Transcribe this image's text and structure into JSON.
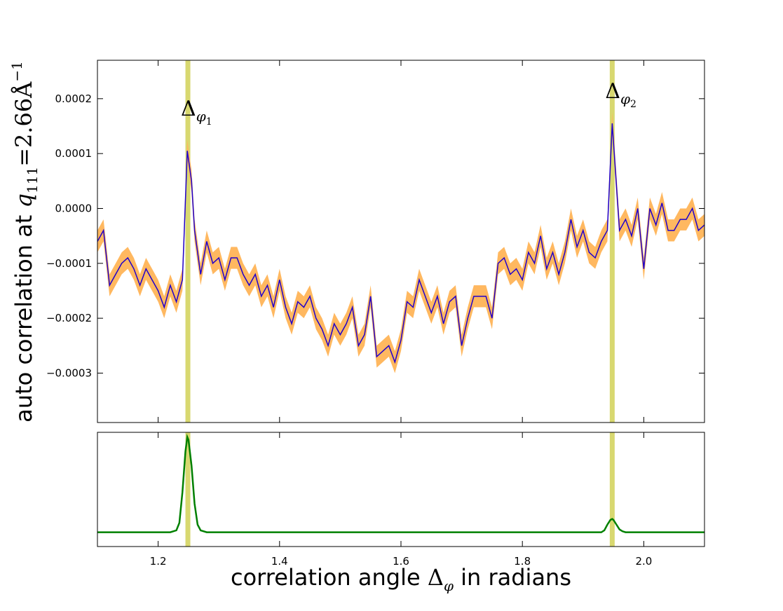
{
  "chart_data": [
    {
      "type": "line",
      "x": [
        1.1,
        1.11,
        1.12,
        1.13,
        1.14,
        1.15,
        1.16,
        1.17,
        1.18,
        1.19,
        1.2,
        1.21,
        1.22,
        1.23,
        1.24,
        1.248,
        1.255,
        1.26,
        1.27,
        1.28,
        1.29,
        1.3,
        1.31,
        1.32,
        1.33,
        1.34,
        1.35,
        1.36,
        1.37,
        1.38,
        1.39,
        1.4,
        1.41,
        1.42,
        1.43,
        1.44,
        1.45,
        1.46,
        1.47,
        1.48,
        1.49,
        1.5,
        1.51,
        1.52,
        1.53,
        1.54,
        1.55,
        1.56,
        1.57,
        1.58,
        1.59,
        1.6,
        1.61,
        1.62,
        1.63,
        1.64,
        1.65,
        1.66,
        1.67,
        1.68,
        1.69,
        1.7,
        1.71,
        1.72,
        1.73,
        1.74,
        1.75,
        1.76,
        1.77,
        1.78,
        1.79,
        1.8,
        1.81,
        1.82,
        1.83,
        1.84,
        1.85,
        1.86,
        1.87,
        1.88,
        1.89,
        1.9,
        1.91,
        1.92,
        1.93,
        1.94,
        1.948,
        1.96,
        1.97,
        1.98,
        1.99,
        2.0,
        2.01,
        2.02,
        2.03,
        2.04,
        2.05,
        2.06,
        2.07,
        2.08,
        2.09,
        2.1
      ],
      "series": [
        {
          "color": "#1f00cc",
          "band_color": "#ffb860",
          "error": 2e-05,
          "values": [
            -6e-05,
            -4e-05,
            -0.00014,
            -0.00012,
            -0.0001,
            -9e-05,
            -0.00011,
            -0.00014,
            -0.00011,
            -0.00013,
            -0.00015,
            -0.00018,
            -0.00014,
            -0.00017,
            -0.00013,
            0.000105,
            5e-05,
            -4e-05,
            -0.00012,
            -6e-05,
            -0.0001,
            -9e-05,
            -0.00013,
            -9e-05,
            -9e-05,
            -0.00012,
            -0.00014,
            -0.00012,
            -0.00016,
            -0.00014,
            -0.00018,
            -0.00013,
            -0.00018,
            -0.00021,
            -0.00017,
            -0.00018,
            -0.00016,
            -0.0002,
            -0.00022,
            -0.00025,
            -0.00021,
            -0.00023,
            -0.00021,
            -0.00018,
            -0.00025,
            -0.00023,
            -0.00016,
            -0.00027,
            -0.00026,
            -0.00025,
            -0.00028,
            -0.00024,
            -0.00017,
            -0.00018,
            -0.00013,
            -0.00016,
            -0.00019,
            -0.00016,
            -0.00021,
            -0.00017,
            -0.00016,
            -0.00025,
            -0.0002,
            -0.00016,
            -0.00016,
            -0.00016,
            -0.0002,
            -0.0001,
            -9e-05,
            -0.00012,
            -0.00011,
            -0.00013,
            -8e-05,
            -0.0001,
            -5e-05,
            -0.00011,
            -8e-05,
            -0.00012,
            -8e-05,
            -2e-05,
            -7e-05,
            -4e-05,
            -8e-05,
            -9e-05,
            -6e-05,
            -4e-05,
            0.000155,
            -4e-05,
            -2e-05,
            -5e-05,
            0,
            -0.00011,
            0,
            -3e-05,
            1e-05,
            -4e-05,
            -4e-05,
            -2e-05,
            -2e-05,
            0,
            -4e-05,
            -3e-05
          ]
        }
      ],
      "xlim": [
        1.1,
        2.1
      ],
      "ylim": [
        -0.00039,
        0.00027
      ],
      "yticks": [
        {
          "value": -0.0003,
          "label": "−0.0003"
        },
        {
          "value": -0.0002,
          "label": "−0.0002"
        },
        {
          "value": -0.0001,
          "label": "−0.0001"
        },
        {
          "value": 0,
          "label": "0.0000"
        },
        0.0001,
        0.0002
      ],
      "ylabel": [
        "auto correlation at ",
        "q",
        "111",
        "=2.66Å",
        "−1"
      ],
      "highlights": [
        1.249,
        1.948
      ],
      "highlight_color": "#d8d870",
      "annotations": [
        {
          "symbol": "Δ",
          "sub": "φ",
          "index": "1"
        },
        {
          "symbol": "Δ",
          "sub": "φ",
          "index": "2"
        }
      ]
    },
    {
      "type": "line",
      "x": [
        1.1,
        1.22,
        1.23,
        1.235,
        1.24,
        1.245,
        1.248,
        1.25,
        1.255,
        1.26,
        1.265,
        1.27,
        1.28,
        1.93,
        1.935,
        1.94,
        1.945,
        1.948,
        1.95,
        1.955,
        1.96,
        1.965,
        1.97,
        2.1
      ],
      "series": [
        {
          "color": "#008000",
          "values": [
            0,
            0,
            0.02,
            0.1,
            0.42,
            0.85,
            1.0,
            0.97,
            0.7,
            0.3,
            0.08,
            0.02,
            0,
            0,
            0.02,
            0.08,
            0.13,
            0.14,
            0.13,
            0.08,
            0.03,
            0.01,
            0,
            0
          ]
        }
      ],
      "xlim": [
        1.1,
        2.1
      ],
      "ylim": [
        -0.15,
        1.05
      ],
      "xticks": [
        1.2,
        1.4,
        1.6,
        1.8,
        {
          "value": 2.0,
          "label": "2.0"
        }
      ],
      "xlabel": [
        "correlation angle ",
        "Δ",
        "φ",
        " in radians"
      ],
      "highlights": [
        1.249,
        1.948
      ],
      "highlight_color": "#d8d870"
    }
  ]
}
